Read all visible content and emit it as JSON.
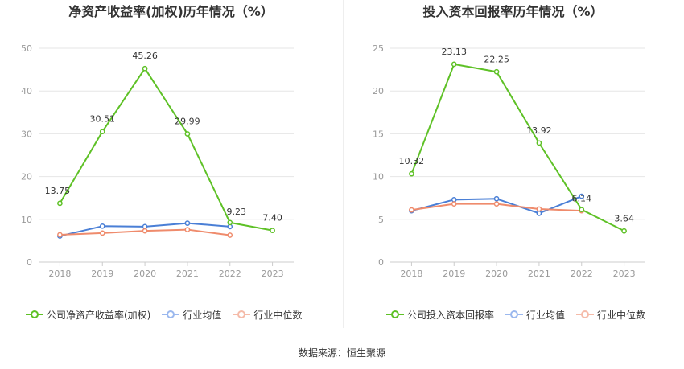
{
  "chart_data": [
    {
      "type": "line",
      "title": "净资产收益率(加权)历年情况（%）",
      "categories": [
        "2018",
        "2019",
        "2020",
        "2021",
        "2022",
        "2023"
      ],
      "ylim": [
        0,
        50
      ],
      "yticks": [
        "0",
        "10",
        "20",
        "30",
        "40",
        "50"
      ],
      "series": [
        {
          "name": "公司净资产收益率(加权)",
          "color": "#5ec126",
          "values": [
            13.75,
            30.51,
            45.26,
            29.99,
            9.23,
            7.4
          ],
          "labels": [
            "13.75",
            "30.51",
            "45.26",
            "29.99",
            "9.23",
            "7.40"
          ]
        },
        {
          "name": "行业均值",
          "color": "#4a7fd6",
          "values": [
            6.1,
            8.4,
            8.3,
            9.1,
            8.3,
            null
          ]
        },
        {
          "name": "行业中位数",
          "color": "#ef8b6c",
          "values": [
            6.4,
            6.8,
            7.3,
            7.6,
            6.3,
            null
          ]
        }
      ]
    },
    {
      "type": "line",
      "title": "投入资本回报率历年情况（%）",
      "categories": [
        "2018",
        "2019",
        "2020",
        "2021",
        "2022",
        "2023"
      ],
      "ylim": [
        0,
        25
      ],
      "yticks": [
        "0",
        "5",
        "10",
        "15",
        "20",
        "25"
      ],
      "series": [
        {
          "name": "公司投入资本回报率",
          "color": "#5ec126",
          "values": [
            10.32,
            23.13,
            22.25,
            13.92,
            6.14,
            3.64
          ],
          "labels": [
            "10.32",
            "23.13",
            "22.25",
            "13.92",
            "6.14",
            "3.64"
          ]
        },
        {
          "name": "行业均值",
          "color": "#4a7fd6",
          "values": [
            6.0,
            7.3,
            7.4,
            5.7,
            7.7,
            null
          ]
        },
        {
          "name": "行业中位数",
          "color": "#ef8b6c",
          "values": [
            6.1,
            6.8,
            6.8,
            6.2,
            6.0,
            null
          ]
        }
      ]
    }
  ],
  "source": "数据来源：恒生聚源"
}
